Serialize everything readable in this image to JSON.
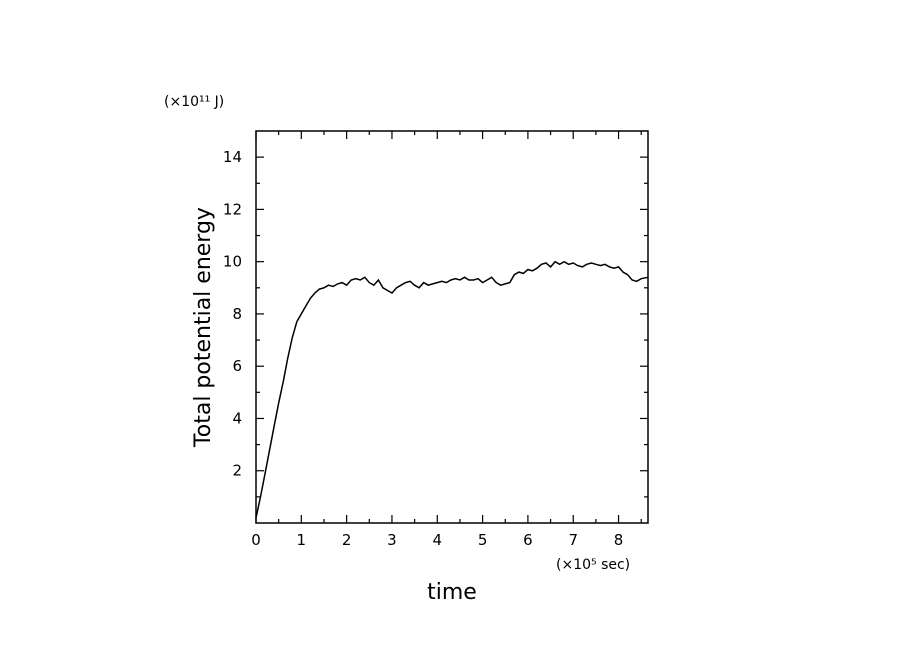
{
  "chart_data": {
    "type": "line",
    "title": "",
    "xlabel": "time",
    "ylabel": "Total potential energy",
    "x_unit": "(×10⁵ sec)",
    "y_unit": "(×10¹¹ J)",
    "xlim": [
      0,
      8.65
    ],
    "ylim": [
      0,
      15
    ],
    "x_ticks": [
      "0",
      "1",
      "2",
      "3",
      "4",
      "5",
      "6",
      "7",
      "8"
    ],
    "y_ticks": [
      "2",
      "4",
      "6",
      "8",
      "10",
      "12",
      "14"
    ],
    "grid": false,
    "legend": "none",
    "series": [
      {
        "name": "",
        "x": [
          0,
          0.1,
          0.2,
          0.3,
          0.4,
          0.5,
          0.6,
          0.7,
          0.8,
          0.9,
          1.0,
          1.1,
          1.2,
          1.3,
          1.4,
          1.5,
          1.6,
          1.7,
          1.8,
          1.9,
          2.0,
          2.1,
          2.2,
          2.3,
          2.4,
          2.5,
          2.6,
          2.7,
          2.8,
          2.9,
          3.0,
          3.1,
          3.2,
          3.3,
          3.4,
          3.5,
          3.6,
          3.7,
          3.8,
          3.9,
          4.0,
          4.1,
          4.2,
          4.3,
          4.4,
          4.5,
          4.6,
          4.7,
          4.8,
          4.9,
          5.0,
          5.1,
          5.2,
          5.3,
          5.4,
          5.5,
          5.6,
          5.7,
          5.8,
          5.9,
          6.0,
          6.1,
          6.2,
          6.3,
          6.4,
          6.5,
          6.6,
          6.7,
          6.8,
          6.9,
          7.0,
          7.1,
          7.2,
          7.3,
          7.4,
          7.5,
          7.6,
          7.7,
          7.8,
          7.9,
          8.0,
          8.1,
          8.2,
          8.3,
          8.4,
          8.5,
          8.65
        ],
        "y": [
          0.2,
          1.0,
          1.9,
          2.8,
          3.7,
          4.6,
          5.4,
          6.3,
          7.1,
          7.7,
          8.0,
          8.3,
          8.6,
          8.8,
          8.95,
          9.0,
          9.1,
          9.05,
          9.15,
          9.2,
          9.1,
          9.3,
          9.35,
          9.3,
          9.4,
          9.2,
          9.1,
          9.3,
          9.0,
          8.9,
          8.8,
          9.0,
          9.1,
          9.2,
          9.25,
          9.1,
          9.0,
          9.2,
          9.1,
          9.15,
          9.2,
          9.25,
          9.2,
          9.3,
          9.35,
          9.3,
          9.4,
          9.3,
          9.3,
          9.35,
          9.2,
          9.3,
          9.4,
          9.2,
          9.1,
          9.15,
          9.2,
          9.5,
          9.6,
          9.55,
          9.7,
          9.65,
          9.75,
          9.9,
          9.95,
          9.8,
          10.0,
          9.9,
          10.0,
          9.9,
          9.95,
          9.85,
          9.8,
          9.9,
          9.95,
          9.9,
          9.85,
          9.9,
          9.8,
          9.75,
          9.8,
          9.6,
          9.5,
          9.3,
          9.25,
          9.35,
          9.4
        ]
      }
    ]
  }
}
